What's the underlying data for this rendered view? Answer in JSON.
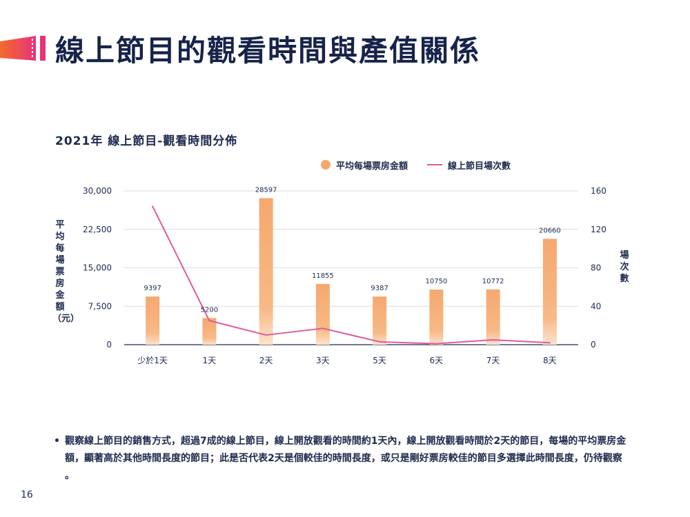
{
  "slide": {
    "title": "線上節目的觀看時間與產值關係",
    "chart_heading": "2021年 線上節目-觀看時間分佈",
    "note": "觀察線上節目的銷售方式，超過7成的線上節目，線上開放觀看的時間約1天內，線上開放觀看時間於2天的節目，每場的平均票房金額，顯著高於其他時間長度的節目；此是否代表2天是個較佳的時間長度，或只是剛好票房較佳的節目多選擇此時間長度，仍待觀察 。",
    "bullet": "•",
    "page_number": "16"
  },
  "colors": {
    "title": "#16234a",
    "bar": "#f5a86e",
    "line": "#e0589a",
    "accent_gradient": [
      "#f26b2a",
      "#e8327a"
    ]
  },
  "chart_data": {
    "type": "bar",
    "title": "2021年 線上節目-觀看時間分佈",
    "categories": [
      "少於1天",
      "1天",
      "2天",
      "3天",
      "5天",
      "6天",
      "7天",
      "8天"
    ],
    "series": [
      {
        "name": "平均每場票房金額",
        "type": "bar",
        "axis": "left",
        "values": [
          9397,
          5200,
          28597,
          11855,
          9387,
          10750,
          10772,
          20660
        ],
        "labels": [
          "9397",
          "5200",
          "28597",
          "11855",
          "9387",
          "10750",
          "10772",
          "20660"
        ]
      },
      {
        "name": "線上節目場次數",
        "type": "line",
        "axis": "right",
        "values": [
          144,
          25,
          10,
          17,
          3,
          1,
          5,
          2
        ]
      }
    ],
    "ylabel_left": "平均每場票房金額（元）",
    "ylabel_right": "場次數",
    "ylim_left": [
      0,
      30000
    ],
    "ylim_right": [
      0,
      160
    ],
    "yticks_left": [
      "0",
      "7,500",
      "15,000",
      "22,500",
      "30,000"
    ],
    "yticks_right": [
      "0",
      "40",
      "80",
      "120",
      "160"
    ],
    "grid": true,
    "legend": "top-right"
  }
}
